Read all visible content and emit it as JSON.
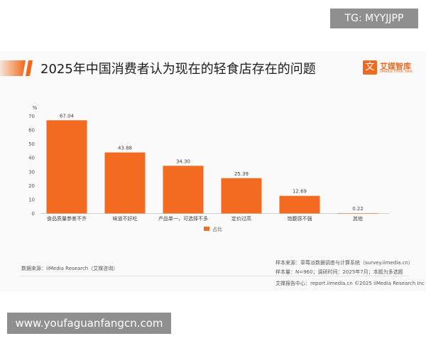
{
  "watermark_top": "TG: MYYJJPP",
  "watermark_bottom": "www.youfaguanfangcn.com",
  "brand": {
    "logo_glyph": "文",
    "name": "艾媒智库",
    "sub": "iiMedia Think Tank",
    "accent": "#f06a1d"
  },
  "source_left": "数据来源：iiMedia Research（艾媒咨询）",
  "source_right": [
    "样本来源：草莓派数据调查与计算系统（survey.iimedia.cn）",
    "样本量：N=960；调研时间：2025年7月；本题为多选题"
  ],
  "footer": "艾媒报告中心：report.iimedia.cn  ©2025 iiMedia Research Inc",
  "chart_data": {
    "type": "bar",
    "title": "2025年中国消费者认为现在的轻食店存在的问题",
    "ylabel": "%",
    "xlabel": "",
    "ylim": [
      0,
      70
    ],
    "yticks": [
      0,
      10,
      20,
      30,
      40,
      50,
      60,
      70
    ],
    "categories": [
      "食品质量参差不齐",
      "味道不好吃",
      "产品单一，可选择不多",
      "定价过高",
      "饱腹感不强",
      "其他"
    ],
    "series": [
      {
        "name": "占比",
        "values": [
          67.04,
          43.88,
          34.3,
          25.39,
          12.69,
          0.22
        ],
        "color": "#f26b21"
      }
    ],
    "value_labels": [
      "67.04",
      "43.88",
      "34.30",
      "25.39",
      "12.69",
      "0.22"
    ],
    "grid": false,
    "legend_position": "bottom-center"
  }
}
